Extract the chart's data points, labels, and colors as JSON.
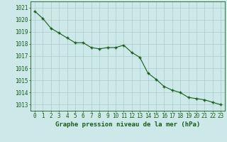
{
  "x": [
    0,
    1,
    2,
    3,
    4,
    5,
    6,
    7,
    8,
    9,
    10,
    11,
    12,
    13,
    14,
    15,
    16,
    17,
    18,
    19,
    20,
    21,
    22,
    23
  ],
  "y": [
    1020.7,
    1020.1,
    1019.3,
    1018.9,
    1018.5,
    1018.1,
    1018.1,
    1017.7,
    1017.6,
    1017.7,
    1017.7,
    1017.9,
    1017.3,
    1016.9,
    1015.6,
    1015.1,
    1014.5,
    1014.2,
    1014.0,
    1013.6,
    1013.5,
    1013.4,
    1013.2,
    1013.0
  ],
  "ylim": [
    1012.5,
    1021.5
  ],
  "yticks": [
    1013,
    1014,
    1015,
    1016,
    1017,
    1018,
    1019,
    1020,
    1021
  ],
  "xticks": [
    0,
    1,
    2,
    3,
    4,
    5,
    6,
    7,
    8,
    9,
    10,
    11,
    12,
    13,
    14,
    15,
    16,
    17,
    18,
    19,
    20,
    21,
    22,
    23
  ],
  "xlabel": "Graphe pression niveau de la mer (hPa)",
  "line_color": "#1a5c1a",
  "marker": "+",
  "bg_color": "#cce8e8",
  "grid_color": "#aacccc",
  "label_color": "#1a5c1a",
  "xlabel_fontsize": 6.5,
  "tick_fontsize": 5.5
}
